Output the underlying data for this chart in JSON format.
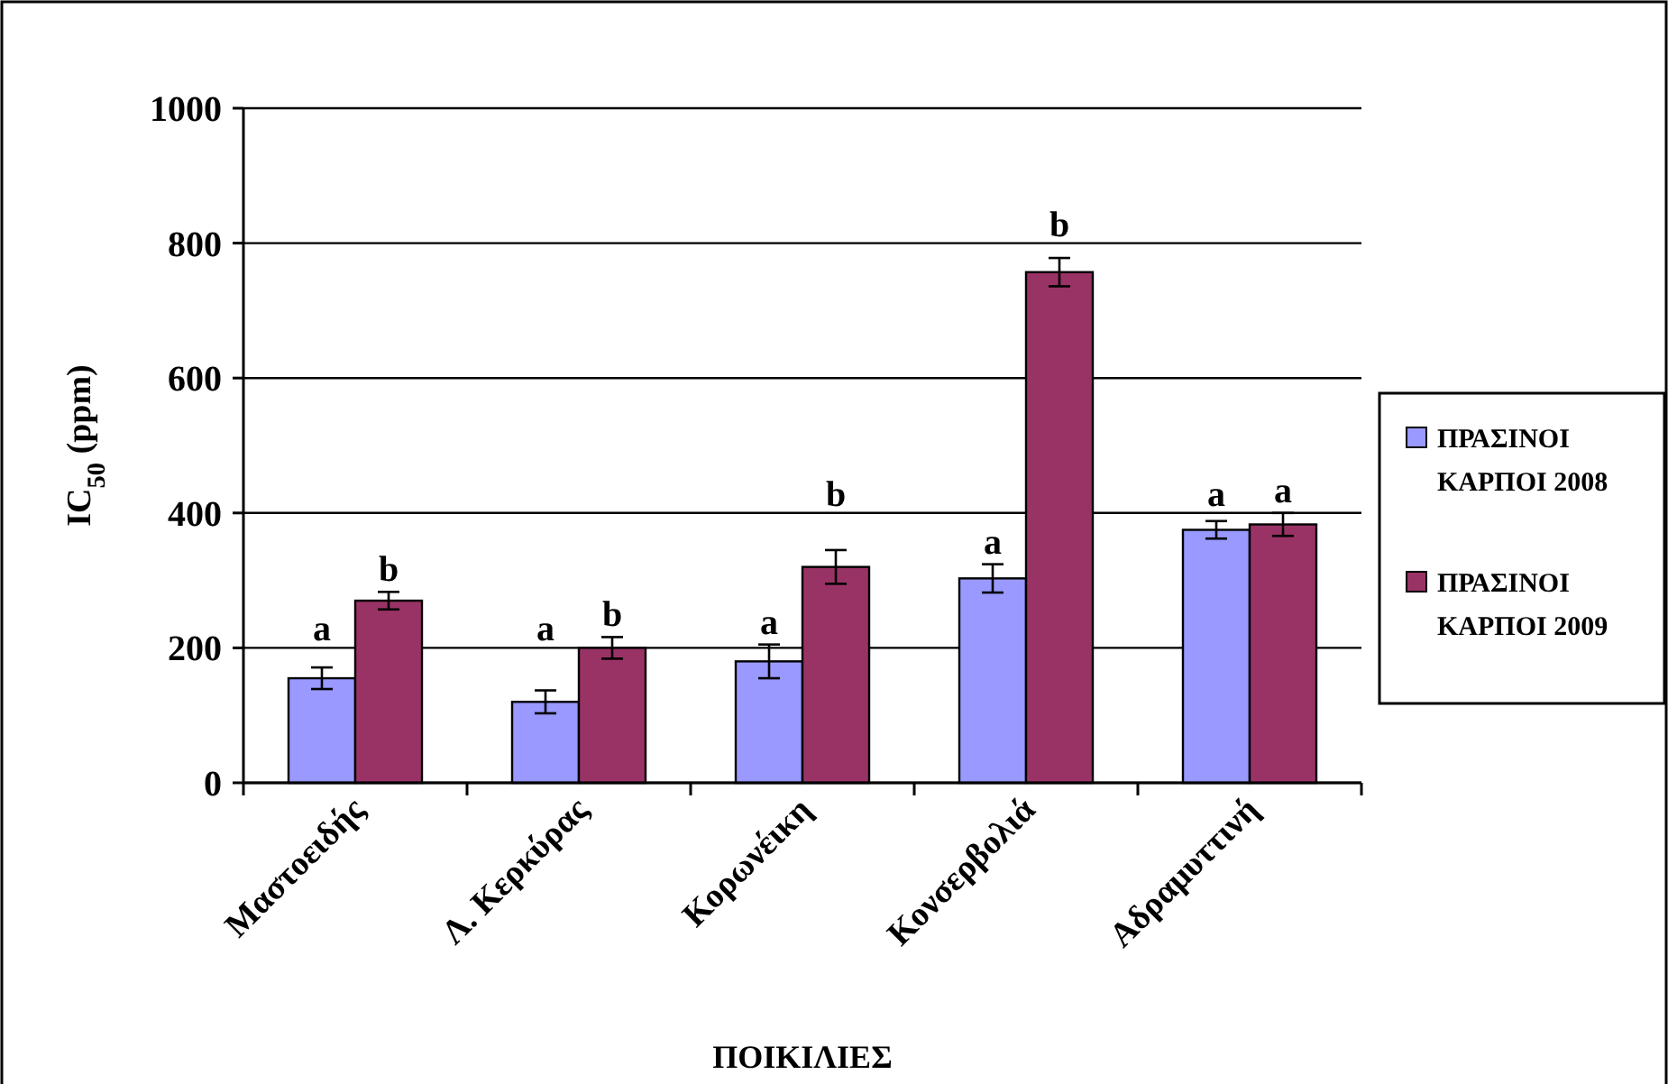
{
  "chart_data": {
    "type": "bar",
    "xlabel": "ΠΟΙΚΙΛΙΕΣ",
    "ylabel": "IC$_{50}$ (ppm)",
    "categories": [
      "Μαστοειδής",
      "Λ. Κερκύρας",
      "Κορωνέικη",
      "Κονσερβολιά",
      "Αδραμυττινή"
    ],
    "series": [
      {
        "name": "ΠΡΑΣΙΝΟΙ ΚΑΡΠΟΙ 2008",
        "color": "#9999ff",
        "values": [
          155,
          120,
          180,
          303,
          375
        ],
        "errors": [
          16,
          17,
          25,
          21,
          13
        ],
        "value_labels": [
          "a",
          "a",
          "a",
          "a",
          "a"
        ]
      },
      {
        "name": "ΠΡΑΣΙΝΟΙ ΚΑΡΠΟΙ 2009",
        "color": "#993366",
        "values": [
          270,
          200,
          320,
          757,
          383
        ],
        "errors": [
          13,
          16,
          25,
          21,
          17
        ],
        "value_labels": [
          "b",
          "b",
          "b",
          "b",
          "a"
        ]
      }
    ],
    "ylim": [
      0,
      1000
    ],
    "yticks": [
      0,
      200,
      400,
      600,
      800,
      1000
    ],
    "grid": "y",
    "legend": "right"
  }
}
